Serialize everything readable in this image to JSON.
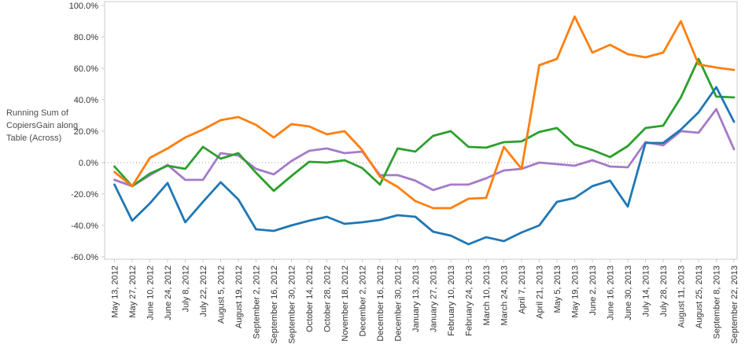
{
  "axis_title": "Running Sum of CopiersGain along Table (Across)",
  "colors": {
    "background": "#ffffff",
    "plot_border": "#cbcbcb",
    "tick_mark": "#cbcbcb",
    "zero_line": "#999999",
    "tick_label": "#333333",
    "axis_title_text": "#4d4d4d",
    "series_blue": "#1f77b4",
    "series_orange": "#ff7f0e",
    "series_green": "#2ca02c",
    "series_purple": "#a57bc8"
  },
  "chart_data": {
    "type": "line",
    "title": "",
    "xlabel": "",
    "ylabel": "Running Sum of CopiersGain along Table (Across)",
    "legend": "none",
    "grid": "dotted zero line only",
    "y_ticks": [
      100,
      80,
      60,
      40,
      20,
      0,
      -20,
      -40,
      -60
    ],
    "y_tick_suffix": "%",
    "ylim": [
      -61.5,
      102.5
    ],
    "x": [
      "May 13, 2012",
      "May 27, 2012",
      "June 10, 2012",
      "June 24, 2012",
      "July 8, 2012",
      "July 22, 2012",
      "August 5, 2012",
      "August 19, 2012",
      "September 2, 2012",
      "September 16, 2012",
      "September 30, 2012",
      "October 14, 2012",
      "October 28, 2012",
      "November 18, 2012",
      "December 2, 2012",
      "December 16, 2012",
      "December 30, 2012",
      "January 13, 2013",
      "January 27, 2013",
      "February 10, 2013",
      "February 24, 2013",
      "March 10, 2013",
      "March 24, 2013",
      "April 7, 2013",
      "April 21, 2013",
      "May 5, 2013",
      "May 19, 2013",
      "June 2, 2013",
      "June 16, 2013",
      "June 30, 2013",
      "July 14, 2013",
      "July 28, 2013",
      "August 11, 2013",
      "August 25, 2013",
      "September 8, 2013",
      "September 22, 2013"
    ],
    "series": [
      {
        "name": "purple",
        "color": "#a57bc8",
        "values": [
          -11,
          -15,
          -8,
          -1.5,
          -11,
          -11,
          6,
          4.5,
          -4,
          -7.5,
          1,
          7.5,
          9,
          6,
          7,
          -8,
          -8,
          -11.5,
          -17.5,
          -14,
          -14,
          -10,
          -5,
          -4,
          0,
          -1,
          -2,
          1.5,
          -2.5,
          -3,
          13,
          11,
          20,
          19,
          34,
          8.5
        ]
      },
      {
        "name": "green",
        "color": "#2ca02c",
        "values": [
          -2.5,
          -15,
          -7,
          -2,
          -4,
          10,
          2.5,
          6,
          -6.5,
          -18,
          -8.5,
          0.5,
          0,
          1.5,
          -3.5,
          -14,
          9,
          7,
          17,
          20,
          10,
          9.5,
          13,
          13.5,
          19.5,
          22,
          11.5,
          8,
          3.5,
          10.5,
          22,
          23.5,
          41.5,
          66,
          42,
          41.5
        ]
      },
      {
        "name": "blue",
        "color": "#1f77b4",
        "values": [
          -14,
          -37,
          -26,
          -13,
          -38,
          -25,
          -12.5,
          -23.5,
          -42.5,
          -43.5,
          -40,
          -37,
          -34.5,
          -39,
          -38,
          -36.5,
          -33.5,
          -34.5,
          -44,
          -46.5,
          -52,
          -47.5,
          -50,
          -44.5,
          -40,
          -25,
          -22.5,
          -15,
          -11.5,
          -28,
          12.5,
          12.5,
          21,
          32,
          48,
          26
        ]
      },
      {
        "name": "orange",
        "color": "#ff7f0e",
        "values": [
          -6,
          -15,
          3,
          9,
          16,
          21,
          27,
          29,
          24,
          16,
          24.5,
          23,
          18,
          20,
          8,
          -9,
          -15.5,
          -24.5,
          -29,
          -29,
          -23,
          -22.5,
          10,
          -4,
          62,
          66,
          93,
          70,
          75,
          69,
          67,
          70,
          90,
          62.5,
          60.5,
          59
        ]
      }
    ]
  }
}
